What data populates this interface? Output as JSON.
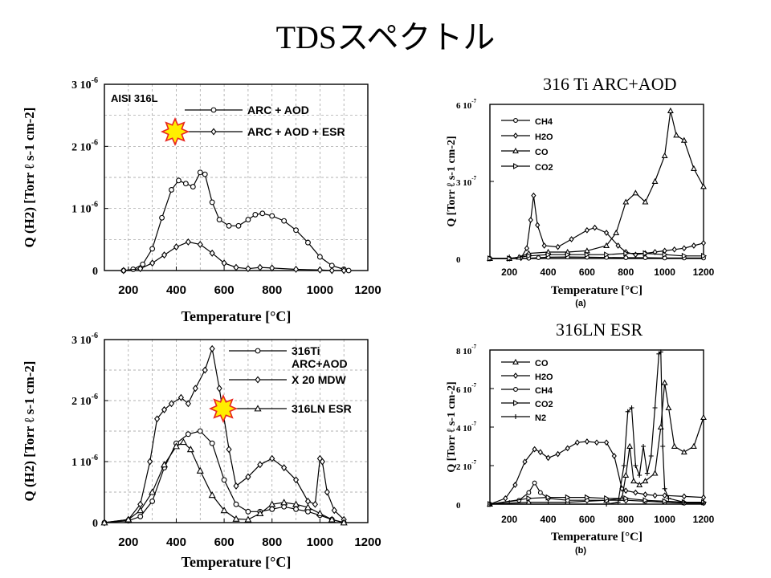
{
  "slide": {
    "title": "TDSスペクトル",
    "caption_top": "316 Ti ARC+AOD",
    "caption_bottom": "316LN ESR"
  },
  "highlight": {
    "color": "#ffee00",
    "outline": "#e8251f",
    "icon": "star-burst-icon"
  },
  "chart_data": [
    {
      "type": "line",
      "panel": "top-left",
      "title": "",
      "annotation": "AISI 316L",
      "xlabel": "Temperature [°C]",
      "ylabel": "Q (H2) [Torr ℓ s-1 cm-2]",
      "xlim": [
        100,
        1200
      ],
      "ylim": [
        0,
        3e-06
      ],
      "grid": true,
      "legend_position": "top-right",
      "x_ticks": [
        {
          "v": 200,
          "t": "200"
        },
        {
          "v": 400,
          "t": "400"
        },
        {
          "v": 600,
          "t": "600"
        },
        {
          "v": 800,
          "t": "800"
        },
        {
          "v": 1000,
          "t": "1000"
        },
        {
          "v": 1200,
          "t": "1200"
        }
      ],
      "y_ticks": [
        {
          "v": 0,
          "t": "0"
        },
        {
          "v": 1e-06,
          "t": "1 10-6"
        },
        {
          "v": 2e-06,
          "t": "2 10-6"
        },
        {
          "v": 3e-06,
          "t": "3 10-6"
        }
      ],
      "series": [
        {
          "name": "ARC + AOD",
          "marker": "circle",
          "highlight": false,
          "x": [
            180,
            220,
            260,
            300,
            340,
            380,
            410,
            440,
            470,
            500,
            520,
            550,
            580,
            620,
            660,
            700,
            730,
            760,
            800,
            850,
            900,
            950,
            1000,
            1050,
            1100,
            1120
          ],
          "y": [
            0,
            2e-08,
            1e-07,
            3.5e-07,
            8.5e-07,
            1.3e-06,
            1.45e-06,
            1.4e-06,
            1.35e-06,
            1.58e-06,
            1.55e-06,
            1.1e-06,
            8.2e-07,
            7.2e-07,
            7.2e-07,
            8.2e-07,
            9e-07,
            9.2e-07,
            8.8e-07,
            8e-07,
            6.5e-07,
            4.5e-07,
            2.2e-07,
            8e-08,
            2e-08,
            0
          ]
        },
        {
          "name": "ARC + AOD + ESR",
          "marker": "diamond",
          "highlight": true,
          "x": [
            180,
            250,
            300,
            350,
            400,
            450,
            500,
            550,
            600,
            650,
            700,
            750,
            800,
            900,
            1000,
            1050,
            1100
          ],
          "y": [
            0,
            3e-08,
            1.2e-07,
            2.5e-07,
            3.8e-07,
            4.6e-07,
            4.2e-07,
            2.8e-07,
            1.2e-07,
            5e-08,
            3e-08,
            5e-08,
            4e-08,
            2e-08,
            1e-08,
            0,
            0
          ]
        }
      ]
    },
    {
      "type": "line",
      "panel": "bottom-left",
      "title": "",
      "xlabel": "Temperature [°C]",
      "ylabel": "Q (H2) [Torr ℓ s-1 cm-2]",
      "xlim": [
        100,
        1200
      ],
      "ylim": [
        0,
        3e-06
      ],
      "grid": true,
      "legend_position": "top-right",
      "x_ticks": [
        {
          "v": 200,
          "t": "200"
        },
        {
          "v": 400,
          "t": "400"
        },
        {
          "v": 600,
          "t": "600"
        },
        {
          "v": 800,
          "t": "800"
        },
        {
          "v": 1000,
          "t": "1000"
        },
        {
          "v": 1200,
          "t": "1200"
        }
      ],
      "y_ticks": [
        {
          "v": 0,
          "t": "0"
        },
        {
          "v": 1e-06,
          "t": "1 10-6"
        },
        {
          "v": 2e-06,
          "t": "2 10-6"
        },
        {
          "v": 3e-06,
          "t": "3 10-6"
        }
      ],
      "series": [
        {
          "name": "316Ti ARC+AOD",
          "marker": "circle",
          "highlight": false,
          "x": [
            100,
            200,
            250,
            300,
            350,
            400,
            450,
            500,
            550,
            600,
            650,
            700,
            750,
            800,
            850,
            900,
            950,
            1000,
            1050,
            1100
          ],
          "y": [
            0,
            3e-08,
            1e-07,
            3.5e-07,
            9e-07,
            1.3e-06,
            1.45e-06,
            1.5e-06,
            1.3e-06,
            7e-07,
            3e-07,
            1.8e-07,
            1.8e-07,
            2.2e-07,
            2.6e-07,
            2.2e-07,
            1.8e-07,
            1.2e-07,
            5e-08,
            0
          ]
        },
        {
          "name": "X 20 MDW",
          "marker": "diamond",
          "highlight": false,
          "x": [
            100,
            200,
            250,
            290,
            320,
            350,
            380,
            420,
            450,
            480,
            520,
            550,
            580,
            620,
            650,
            700,
            750,
            800,
            850,
            900,
            950,
            980,
            1000,
            1010,
            1030,
            1060,
            1100
          ],
          "y": [
            0,
            5e-08,
            3e-07,
            1e-06,
            1.7e-06,
            1.85e-06,
            1.95e-06,
            2.05e-06,
            1.95e-06,
            2.2e-06,
            2.5e-06,
            2.85e-06,
            2.2e-06,
            1.2e-06,
            6e-07,
            7.5e-07,
            9.5e-07,
            1.05e-06,
            9e-07,
            7e-07,
            3.5e-07,
            3e-07,
            1.05e-06,
            1e-06,
            5e-07,
            2e-07,
            5e-08
          ]
        },
        {
          "name": "316LN ESR",
          "marker": "triangle",
          "highlight": true,
          "x": [
            100,
            200,
            250,
            300,
            350,
            400,
            430,
            460,
            500,
            550,
            600,
            650,
            700,
            750,
            800,
            850,
            900,
            950,
            1000,
            1050,
            1100
          ],
          "y": [
            0,
            5e-08,
            2e-07,
            5e-07,
            9.5e-07,
            1.25e-06,
            1.32e-06,
            1.2e-06,
            8.5e-07,
            4.5e-07,
            2e-07,
            6e-08,
            5e-08,
            1.5e-07,
            3e-07,
            3.3e-07,
            3e-07,
            2.5e-07,
            1.5e-07,
            5e-08,
            0
          ]
        }
      ]
    },
    {
      "type": "line",
      "panel": "top-right",
      "title": "",
      "sublabel": "(a)",
      "xlabel": "Temperature [°C]",
      "ylabel": "Q [Torr ℓ s-1 cm-2]",
      "xlim": [
        100,
        1200
      ],
      "ylim": [
        0,
        6e-07
      ],
      "grid": false,
      "legend_position": "top-left",
      "x_ticks": [
        {
          "v": 200,
          "t": "200"
        },
        {
          "v": 400,
          "t": "400"
        },
        {
          "v": 600,
          "t": "600"
        },
        {
          "v": 800,
          "t": "800"
        },
        {
          "v": 1000,
          "t": "1000"
        },
        {
          "v": 1200,
          "t": "1200"
        }
      ],
      "y_ticks": [
        {
          "v": 0,
          "t": "0"
        },
        {
          "v": 3e-07,
          "t": "3 10-7"
        },
        {
          "v": 6e-07,
          "t": "6 10-7"
        }
      ],
      "series": [
        {
          "name": "CH4",
          "marker": "circle",
          "x": [
            100,
            200,
            300,
            350,
            400,
            500,
            600,
            700,
            800,
            900,
            1000,
            1100,
            1200
          ],
          "y": [
            0,
            0,
            1e-09,
            3e-09,
            5e-09,
            6e-09,
            5e-09,
            4e-09,
            3e-09,
            3e-09,
            2e-09,
            2e-09,
            2e-09
          ]
        },
        {
          "name": "H2O",
          "marker": "diamond",
          "x": [
            100,
            200,
            260,
            290,
            310,
            325,
            345,
            380,
            450,
            520,
            600,
            640,
            700,
            760,
            800,
            850,
            900,
            950,
            1000,
            1050,
            1100,
            1150,
            1200
          ],
          "y": [
            0,
            0,
            2e-09,
            4e-08,
            1.5e-07,
            2.45e-07,
            1.3e-07,
            5e-08,
            4.5e-08,
            7.5e-08,
            1.1e-07,
            1.2e-07,
            1e-07,
            5e-08,
            2.5e-08,
            1.5e-08,
            2e-08,
            2.5e-08,
            3e-08,
            3.5e-08,
            4e-08,
            5e-08,
            6e-08
          ]
        },
        {
          "name": "CO",
          "marker": "triangle",
          "x": [
            100,
            200,
            250,
            300,
            400,
            500,
            600,
            700,
            750,
            800,
            850,
            900,
            950,
            1000,
            1030,
            1060,
            1100,
            1150,
            1200
          ],
          "y": [
            0,
            0,
            5e-09,
            2e-08,
            2.5e-08,
            2.5e-08,
            3e-08,
            5e-08,
            1e-07,
            2.2e-07,
            2.55e-07,
            2.2e-07,
            3e-07,
            4e-07,
            5.75e-07,
            4.8e-07,
            4.6e-07,
            3.5e-07,
            2.8e-07
          ]
        },
        {
          "name": "CO2",
          "marker": "triangle-right",
          "x": [
            100,
            200,
            300,
            400,
            500,
            600,
            700,
            800,
            900,
            1000,
            1100,
            1200
          ],
          "y": [
            0,
            0,
            1e-08,
            1.5e-08,
            1.5e-08,
            1.5e-08,
            1.5e-08,
            2e-08,
            2e-08,
            1.5e-08,
            1e-08,
            1e-08
          ]
        }
      ]
    },
    {
      "type": "line",
      "panel": "bottom-right",
      "title": "",
      "sublabel": "(b)",
      "xlabel": "Temperature [°C]",
      "ylabel": "Q [Torr ℓ s-1 cm-2]",
      "xlim": [
        100,
        1200
      ],
      "ylim": [
        0,
        8e-07
      ],
      "grid": false,
      "legend_position": "top-left",
      "x_ticks": [
        {
          "v": 200,
          "t": "200"
        },
        {
          "v": 400,
          "t": "400"
        },
        {
          "v": 600,
          "t": "600"
        },
        {
          "v": 800,
          "t": "800"
        },
        {
          "v": 1000,
          "t": "1000"
        },
        {
          "v": 1200,
          "t": "1200"
        }
      ],
      "y_ticks": [
        {
          "v": 0,
          "t": "0"
        },
        {
          "v": 2e-07,
          "t": "2 10-7"
        },
        {
          "v": 4e-07,
          "t": "4 10-7"
        },
        {
          "v": 6e-07,
          "t": "6 10-7"
        },
        {
          "v": 8e-07,
          "t": "8 10-7"
        }
      ],
      "series": [
        {
          "name": "CO",
          "marker": "triangle",
          "x": [
            100,
            300,
            500,
            700,
            780,
            800,
            820,
            840,
            870,
            900,
            950,
            980,
            1000,
            1020,
            1050,
            1100,
            1150,
            1200
          ],
          "y": [
            0,
            1e-08,
            1e-08,
            2e-08,
            3e-08,
            1.5e-07,
            3e-07,
            1.2e-07,
            1e-07,
            1.2e-07,
            1.6e-07,
            4e-07,
            6.3e-07,
            5e-07,
            3e-07,
            2.7e-07,
            3e-07,
            4.5e-07
          ]
        },
        {
          "name": "H2O",
          "marker": "diamond",
          "x": [
            100,
            180,
            230,
            280,
            330,
            360,
            400,
            450,
            500,
            550,
            600,
            650,
            700,
            740,
            780,
            800,
            850,
            900,
            950,
            1000,
            1100,
            1200
          ],
          "y": [
            0,
            3e-08,
            1e-07,
            2.2e-07,
            2.85e-07,
            2.7e-07,
            2.4e-07,
            2.6e-07,
            2.9e-07,
            3.2e-07,
            3.25e-07,
            3.2e-07,
            3.2e-07,
            2.5e-07,
            8e-08,
            7e-08,
            6e-08,
            5e-08,
            4.5e-08,
            4.5e-08,
            4e-08,
            3.5e-08
          ]
        },
        {
          "name": "CH4",
          "marker": "circle",
          "x": [
            100,
            250,
            300,
            330,
            360,
            400,
            500,
            600,
            700,
            800,
            900,
            1000,
            1100,
            1200
          ],
          "y": [
            0,
            2e-08,
            6e-08,
            1.1e-07,
            6e-08,
            3e-08,
            2e-08,
            2e-08,
            2e-08,
            2e-08,
            1.5e-08,
            1e-08,
            5e-09,
            5e-09
          ]
        },
        {
          "name": "CO2",
          "marker": "triangle-right",
          "x": [
            100,
            300,
            400,
            500,
            600,
            700,
            800,
            900,
            1000,
            1100,
            1200
          ],
          "y": [
            0,
            3e-08,
            3.5e-08,
            3.5e-08,
            3.5e-08,
            3e-08,
            3e-08,
            2e-08,
            1.5e-08,
            1e-08,
            1e-08
          ]
        },
        {
          "name": "N2",
          "marker": "plus",
          "x": [
            100,
            700,
            760,
            790,
            810,
            830,
            850,
            870,
            890,
            910,
            930,
            950,
            970,
            980,
            990,
            1000,
            1020,
            1100,
            1200
          ],
          "y": [
            0,
            0,
            1e-08,
            2e-07,
            4.8e-07,
            5e-07,
            2e-07,
            1.5e-07,
            3e-07,
            1.6e-07,
            2.5e-07,
            5e-07,
            7.8e-07,
            7.9e-07,
            3e-07,
            8e-08,
            3e-08,
            1e-08,
            5e-09
          ]
        }
      ]
    }
  ]
}
